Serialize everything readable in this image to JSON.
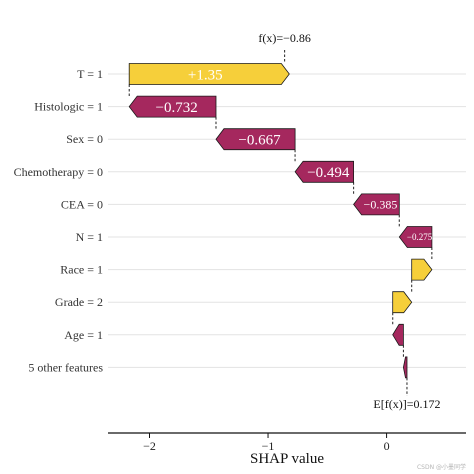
{
  "chart_data": {
    "type": "waterfall",
    "xlabel": "SHAP value",
    "xlim": [
      -2.35,
      0.67
    ],
    "xticks": [
      -2,
      -1,
      0
    ],
    "xtick_labels": [
      "−2",
      "−1",
      "0"
    ],
    "base_value": 0.172,
    "final_value": -0.86,
    "base_label": "E[f(x)]=0.172",
    "final_label": "f(x)=−0.86",
    "features": [
      {
        "label": "T = 1",
        "value": 1.35,
        "text": "+1.35"
      },
      {
        "label": "Histologic = 1",
        "value": -0.732,
        "text": "−0.732"
      },
      {
        "label": "Sex = 0",
        "value": -0.667,
        "text": "−0.667"
      },
      {
        "label": "Chemotherapy = 0",
        "value": -0.494,
        "text": "−0.494"
      },
      {
        "label": "CEA = 0",
        "value": -0.385,
        "text": "−0.385"
      },
      {
        "label": "N = 1",
        "value": -0.275,
        "text": "−0.275"
      },
      {
        "label": "Race = 1",
        "value": 0.17,
        "text": ""
      },
      {
        "label": "Grade = 2",
        "value": 0.16,
        "text": ""
      },
      {
        "label": "Age = 1",
        "value": -0.09,
        "text": ""
      },
      {
        "label": "5 other features",
        "value": -0.03,
        "text": ""
      }
    ],
    "grid": "horizontal",
    "colors": {
      "positive": "#F6CF3A",
      "negative": "#A5285E",
      "label_text": "#ffffff"
    }
  },
  "watermark": "CSDN @小墨同学"
}
